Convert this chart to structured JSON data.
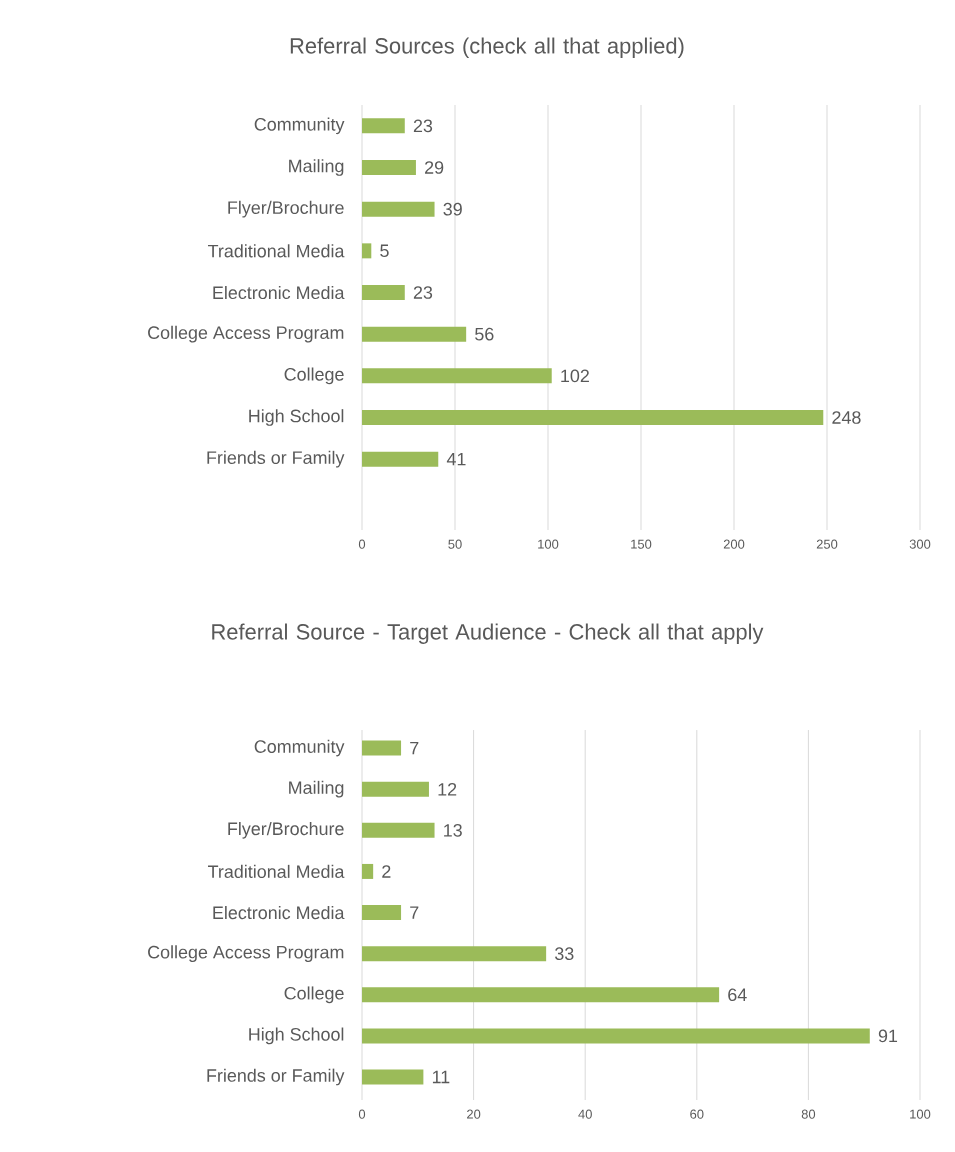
{
  "chart_data": [
    {
      "type": "bar",
      "orientation": "horizontal",
      "title": "Referral Sources (check all that applied)",
      "categories": [
        "Community",
        "Mailing",
        "Flyer/Brochure",
        "Traditional Media",
        "Electronic Media",
        "College Access Program",
        "College",
        "High School",
        "Friends or Family"
      ],
      "values": [
        23,
        29,
        39,
        5,
        23,
        56,
        102,
        248,
        41
      ],
      "color": "#9bbb59",
      "xlim": [
        0,
        300
      ],
      "xticks": [
        0,
        50,
        100,
        150,
        200,
        250,
        300
      ],
      "grid": "x",
      "data_labels": true
    },
    {
      "type": "bar",
      "orientation": "horizontal",
      "title": "Referral Source - Target Audience - Check all that apply",
      "categories": [
        "Community",
        "Mailing",
        "Flyer/Brochure",
        "Traditional Media",
        "Electronic Media",
        "College Access Program",
        "College",
        "High School",
        "Friends or Family"
      ],
      "values": [
        7,
        12,
        13,
        2,
        7,
        33,
        64,
        91,
        11
      ],
      "color": "#9bbb59",
      "xlim": [
        0,
        100
      ],
      "xticks": [
        0,
        20,
        40,
        60,
        80,
        100
      ],
      "grid": "x",
      "data_labels": true
    }
  ]
}
